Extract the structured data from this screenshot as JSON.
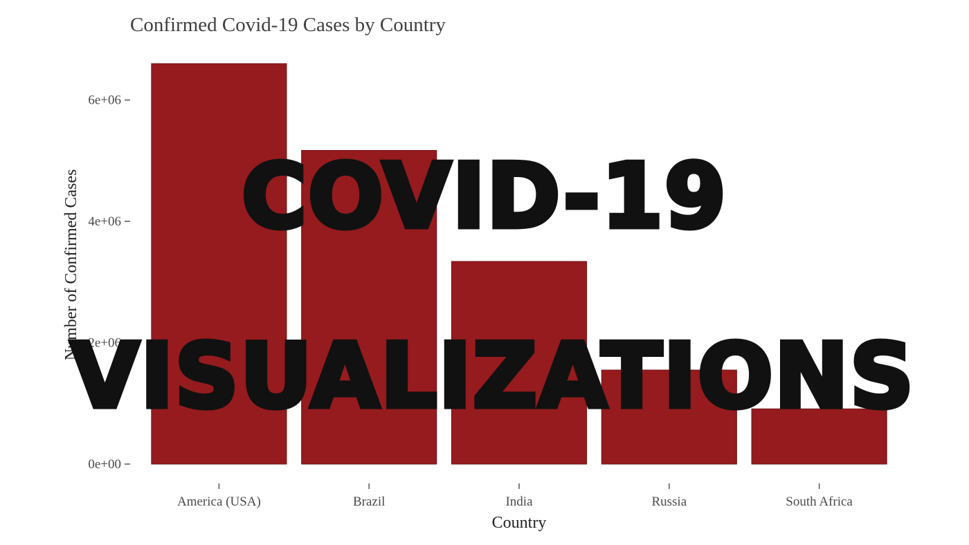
{
  "overlay": {
    "line1": "COVID-19",
    "line2": "VISUALIZATIONS"
  },
  "colors": {
    "bar": "#951b1e",
    "bar_outline": "#6f1416",
    "overlay": "#111111"
  },
  "chart_data": {
    "type": "bar",
    "title": "Confirmed Covid-19 Cases by Country",
    "xlabel": "Country",
    "ylabel": "Number of Confirmed Cases",
    "categories": [
      "America (USA)",
      "Brazil",
      "India",
      "Russia",
      "South Africa"
    ],
    "values": [
      6600000,
      5170000,
      3340000,
      1550000,
      910000
    ],
    "ylim": [
      0,
      6600000
    ],
    "yticks": [
      0,
      2000000,
      4000000,
      6000000
    ],
    "ytick_labels": [
      "0e+00",
      "2e+06",
      "4e+06",
      "6e+06"
    ],
    "grid": false,
    "legend": "none"
  }
}
